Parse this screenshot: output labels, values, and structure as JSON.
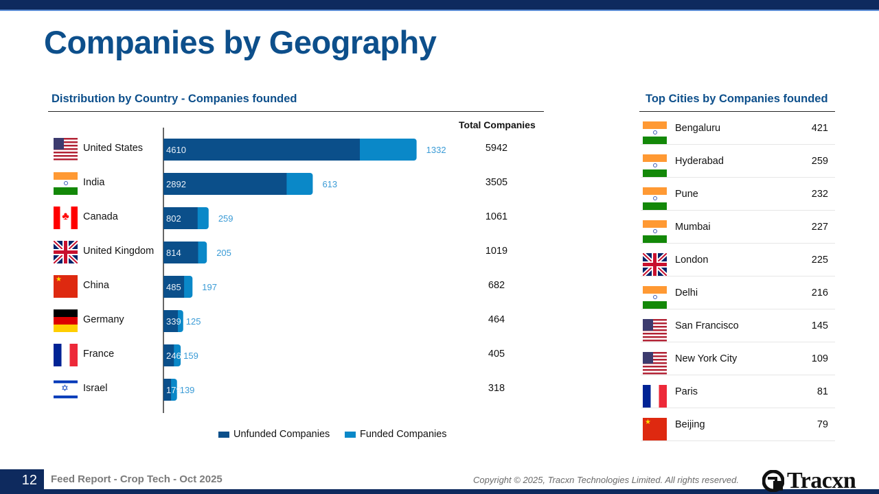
{
  "page": {
    "title": "Companies by Geography",
    "page_number": "12",
    "footer_left": "Feed Report - Crop Tech - Oct 2025",
    "footer_right": "Copyright © 2025, Tracxn Technologies Limited. All rights reserved.",
    "logo_text": "Tracxn"
  },
  "colors": {
    "brand": "#0d4f8b",
    "unfunded": "#0b4f8a",
    "funded": "#0a88c8",
    "funded_label": "#3a9bd6"
  },
  "country_section": {
    "title": "Distribution by Country - Companies founded",
    "total_header": "Total Companies"
  },
  "cities_section": {
    "title": "Top Cities by Companies founded",
    "rows": [
      {
        "city": "Bengaluru",
        "value": "421",
        "flag": "india-flag-icon"
      },
      {
        "city": "Hyderabad",
        "value": "259",
        "flag": "india-flag-icon"
      },
      {
        "city": "Pune",
        "value": "232",
        "flag": "india-flag-icon"
      },
      {
        "city": "Mumbai",
        "value": "227",
        "flag": "india-flag-icon"
      },
      {
        "city": "London",
        "value": "225",
        "flag": "uk-flag-icon"
      },
      {
        "city": "Delhi",
        "value": "216",
        "flag": "india-flag-icon"
      },
      {
        "city": "San Francisco",
        "value": "145",
        "flag": "us-flag-icon"
      },
      {
        "city": "New York City",
        "value": "109",
        "flag": "us-flag-icon"
      },
      {
        "city": "Paris",
        "value": "81",
        "flag": "france-flag-icon"
      },
      {
        "city": "Beijing",
        "value": "79",
        "flag": "china-flag-icon"
      }
    ]
  },
  "chart_data": {
    "type": "bar",
    "orientation": "horizontal",
    "stacked": true,
    "title": "Distribution by Country - Companies founded",
    "categories": [
      "United States",
      "India",
      "Canada",
      "United Kingdom",
      "China",
      "Germany",
      "France",
      "Israel"
    ],
    "flags": [
      "us-flag-icon",
      "india-flag-icon",
      "canada-flag-icon",
      "uk-flag-icon",
      "china-flag-icon",
      "germany-flag-icon",
      "france-flag-icon",
      "israel-flag-icon"
    ],
    "series": [
      {
        "name": "Unfunded Companies",
        "values": [
          4610,
          2892,
          802,
          814,
          485,
          339,
          246,
          179
        ]
      },
      {
        "name": "Funded Companies",
        "values": [
          1332,
          613,
          259,
          205,
          197,
          125,
          159,
          139
        ]
      }
    ],
    "totals": [
      5942,
      3505,
      1061,
      1019,
      682,
      464,
      405,
      318
    ],
    "legend": [
      "Unfunded Companies",
      "Funded Companies"
    ],
    "legend_position": "bottom",
    "xlim": [
      0,
      6000
    ],
    "grid": false
  }
}
